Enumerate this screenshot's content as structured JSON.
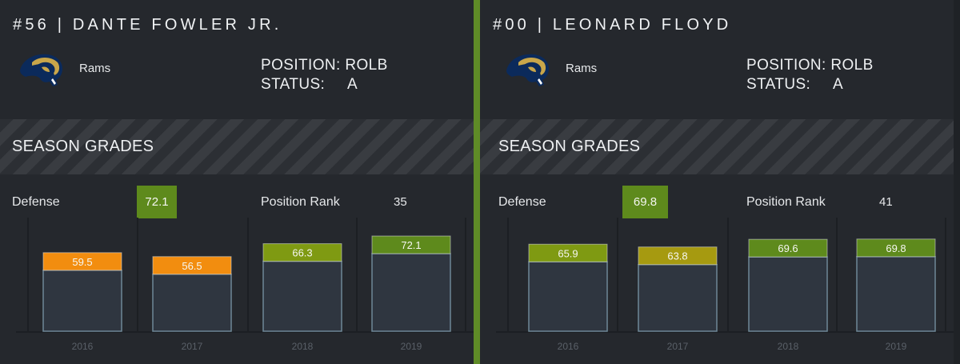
{
  "colors": {
    "accent_divider": "#5f8b27",
    "grade_green": "#5e8a1c",
    "grade_olive": "#7f9a12",
    "grade_yellow": "#a69a10",
    "grade_orange": "#f28d0f",
    "bar_body": "#2f3640"
  },
  "section_title": "SEASON GRADES",
  "labels": {
    "position_key": "POSITION:",
    "status_key": "STATUS:",
    "defense": "Defense",
    "position_rank": "Position Rank"
  },
  "players": [
    {
      "name": "#56 | DANTE FOWLER JR.",
      "team": "Rams",
      "logo_icon": "rams-logo-icon",
      "position": "ROLB",
      "status": "A",
      "defense_grade": "72.1",
      "position_rank": "35"
    },
    {
      "name": "#00 | LEONARD FLOYD",
      "team": "Rams",
      "logo_icon": "rams-logo-icon",
      "position": "ROLB",
      "status": "A",
      "defense_grade": "69.8",
      "position_rank": "41"
    }
  ],
  "chart_data": [
    {
      "type": "bar",
      "categories": [
        "2016",
        "2017",
        "2018",
        "2019"
      ],
      "values": [
        59.5,
        56.5,
        66.3,
        72.1
      ],
      "labels": [
        "59.5",
        "56.5",
        "66.3",
        "72.1"
      ],
      "bar_colors": [
        "#f28d0f",
        "#f28d0f",
        "#7f9a12",
        "#5e8a1c"
      ],
      "ylim": [
        0,
        100
      ]
    },
    {
      "type": "bar",
      "categories": [
        "2016",
        "2017",
        "2018",
        "2019"
      ],
      "values": [
        65.9,
        63.8,
        69.6,
        69.8
      ],
      "labels": [
        "65.9",
        "63.8",
        "69.6",
        "69.8"
      ],
      "bar_colors": [
        "#7f9a12",
        "#a69a10",
        "#5e8a1c",
        "#5e8a1c"
      ],
      "ylim": [
        0,
        100
      ]
    }
  ]
}
